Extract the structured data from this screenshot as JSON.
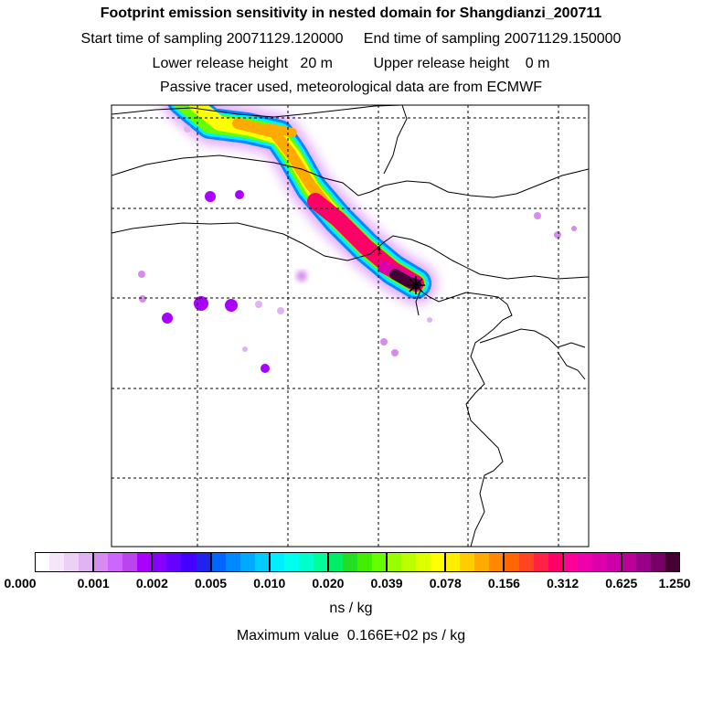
{
  "title": "Footprint emission sensitivity in nested domain for Shangdianzi_200711",
  "sampling_line": "Start time of sampling 20071129.120000     End time of sampling 20071129.150000",
  "release_line": "Lower release height   20 m          Upper release height    0 m",
  "tracer_line": "Passive tracer used, meteorological data are from ECMWF",
  "colorbar": {
    "tick_labels": [
      "0.000",
      "0.001",
      "0.002",
      "0.005",
      "0.010",
      "0.020",
      "0.039",
      "0.078",
      "0.156",
      "0.312",
      "0.625",
      "1.250"
    ],
    "segment_colors": [
      [
        "#ffffff",
        "#f5e6fb",
        "#ecd0f7",
        "#e0b4f3"
      ],
      [
        "#d68cee",
        "#cc66ff",
        "#bb44ee",
        "#aa00ff"
      ],
      [
        "#8800ff",
        "#6600ff",
        "#4400ff",
        "#2222ee"
      ],
      [
        "#0066ff",
        "#0088ff",
        "#00aaff",
        "#00ccff"
      ],
      [
        "#00eeff",
        "#00ffee",
        "#00ffcc",
        "#00ff99"
      ],
      [
        "#00ee66",
        "#22dd22",
        "#44ee00",
        "#66ff00"
      ],
      [
        "#99ff00",
        "#bbff00",
        "#ddff00",
        "#ffff00"
      ],
      [
        "#ffee00",
        "#ffcc00",
        "#ffaa00",
        "#ff8800"
      ],
      [
        "#ff6600",
        "#ff4422",
        "#ff2244",
        "#ff0066"
      ],
      [
        "#ff0099",
        "#ee00aa",
        "#dd00aa",
        "#cc00aa"
      ],
      [
        "#bb0099",
        "#990088",
        "#770066",
        "#440033"
      ]
    ],
    "unit": "ns / kg"
  },
  "max_value_line": "Maximum value  0.166E+02 ps / kg",
  "map": {
    "receptor_marker": "receptor-cross-icon",
    "small_marker": "1"
  }
}
